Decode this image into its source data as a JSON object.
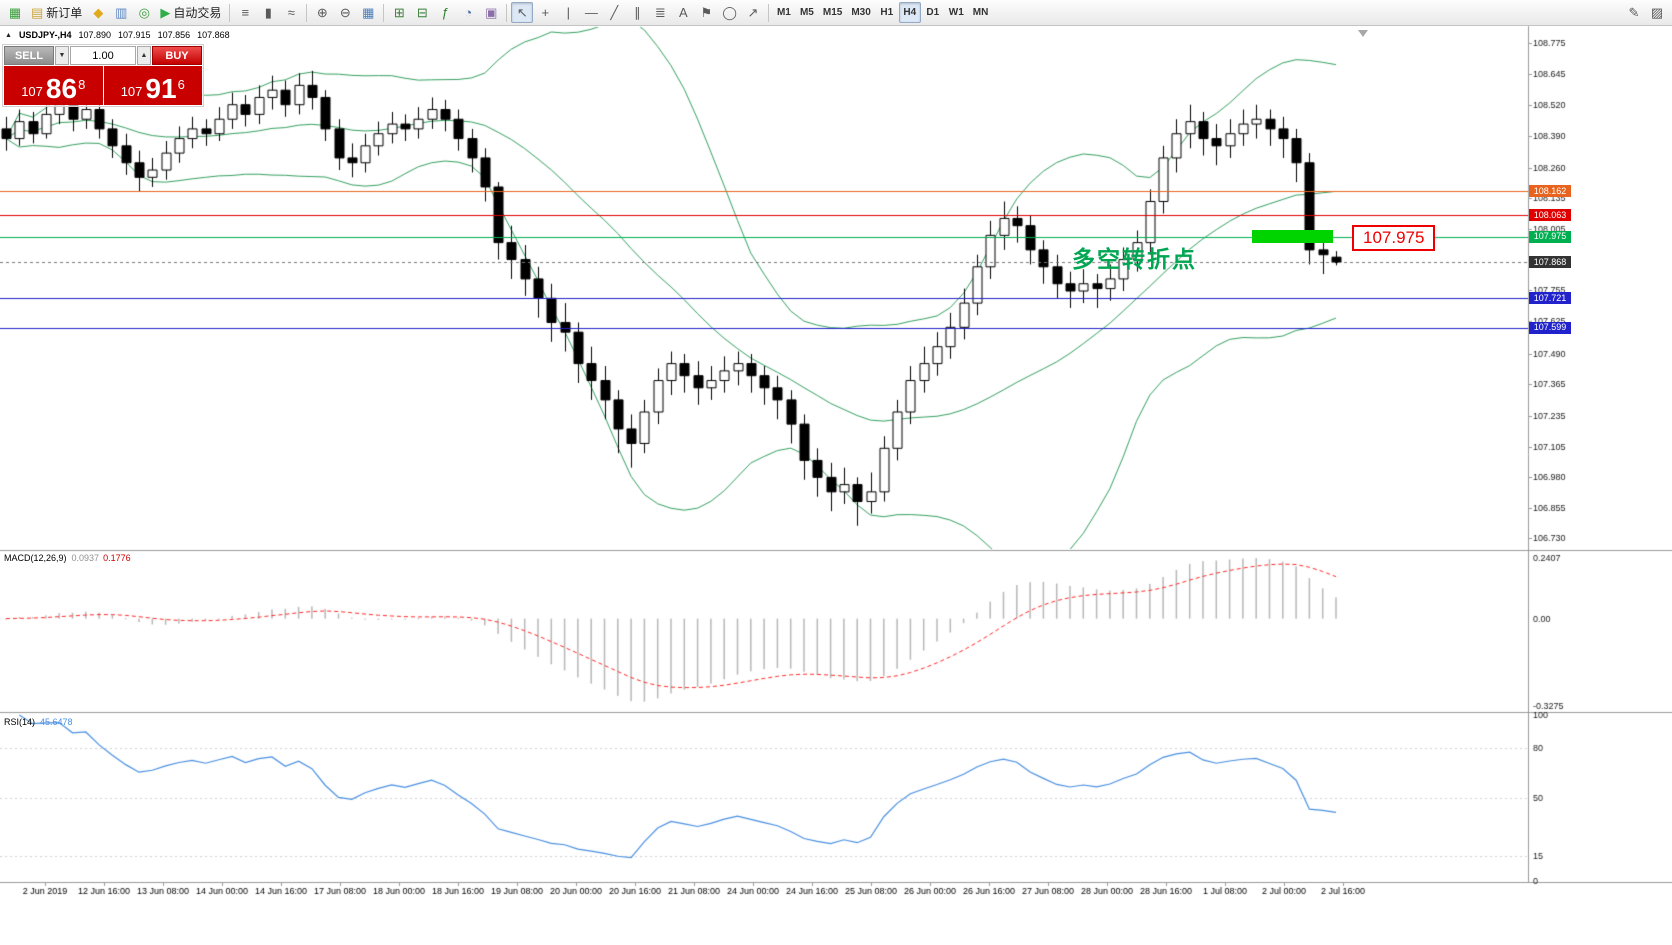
{
  "toolbar": {
    "buttons_left": [
      {
        "name": "new-chart-button",
        "glyph": "▦",
        "color": "#3a9e3a"
      },
      {
        "name": "new-order-button",
        "glyph": "▤",
        "color": "#caa53c",
        "label": "新订单"
      },
      {
        "name": "market-watch-icon",
        "glyph": "◆",
        "color": "#e0a91e"
      },
      {
        "name": "data-window-icon",
        "glyph": "▥",
        "color": "#5b85c0"
      },
      {
        "name": "navigator-icon",
        "glyph": "◎",
        "color": "#3a9e3a"
      },
      {
        "name": "autotrading-button",
        "glyph": "▶",
        "color": "#2fae4a",
        "label": "自动交易"
      }
    ],
    "chart_modes": [
      {
        "name": "bar-chart-mode-button",
        "glyph": "≡"
      },
      {
        "name": "candlestick-mode-button",
        "glyph": "▮"
      },
      {
        "name": "line-chart-mode-button",
        "glyph": "≈"
      }
    ],
    "zoom_group": [
      {
        "name": "zoom-in-button",
        "glyph": "⊕"
      },
      {
        "name": "zoom-out-button",
        "glyph": "⊖"
      },
      {
        "name": "auto-scroll-button",
        "glyph": "▦",
        "color": "#4a7ebb"
      }
    ],
    "window_group": [
      {
        "name": "tile-windows-button",
        "glyph": "⊞",
        "color": "#3a7e3a"
      },
      {
        "name": "cascade-windows-button",
        "glyph": "⊟",
        "color": "#3a7e3a"
      },
      {
        "name": "indicators-button",
        "glyph": "ƒ",
        "color": "#2f7e2f"
      },
      {
        "name": "periods-button",
        "glyph": "◔",
        "color": "#4a6ea8"
      },
      {
        "name": "templates-button",
        "glyph": "▣",
        "color": "#8a6ea8"
      }
    ],
    "tools": [
      {
        "name": "cursor-tool",
        "glyph": "↖",
        "active": true
      },
      {
        "name": "crosshair-tool",
        "glyph": "+"
      },
      {
        "name": "vertical-line-tool",
        "glyph": "|"
      },
      {
        "name": "horizontal-line-tool",
        "glyph": "—"
      },
      {
        "name": "trendline-tool",
        "glyph": "╱"
      },
      {
        "name": "channel-tool",
        "glyph": "∥"
      },
      {
        "name": "fibonacci-tool",
        "glyph": "≣"
      },
      {
        "name": "text-tool",
        "glyph": "A"
      },
      {
        "name": "label-tool",
        "glyph": "⚑"
      },
      {
        "name": "shapes-tool",
        "glyph": "◯"
      },
      {
        "name": "arrows-tool",
        "glyph": "↗"
      }
    ],
    "timeframes": [
      {
        "label": "M1"
      },
      {
        "label": "M5"
      },
      {
        "label": "M15"
      },
      {
        "label": "M30"
      },
      {
        "label": "H1"
      },
      {
        "label": "H4",
        "active": true
      },
      {
        "label": "D1"
      },
      {
        "label": "W1"
      },
      {
        "label": "MN"
      }
    ],
    "right_icons": [
      {
        "name": "edit-icon",
        "glyph": "✎"
      },
      {
        "name": "panel-icon",
        "glyph": "▨"
      }
    ]
  },
  "chart": {
    "symbol_info": {
      "direction_icon": "▲",
      "symbol": "USDJPY-,H4",
      "open": "107.890",
      "high": "107.915",
      "low": "107.856",
      "close": "107.868"
    },
    "trade_panel": {
      "sell_label": "SELL",
      "buy_label": "BUY",
      "volume": "1.00",
      "step_down_icon": "▼",
      "step_up_icon": "▲",
      "sell_price": {
        "small": "107",
        "big": "86",
        "sup": "8"
      },
      "buy_price": {
        "small": "107",
        "big": "91",
        "sup": "6"
      }
    },
    "annotation": {
      "text": "多空转折点",
      "color": "#00a651"
    },
    "callout": {
      "value": "107.975",
      "color": "#ee0000"
    },
    "highlight": {
      "color": "#00d400",
      "price_top": 108.001,
      "price_bottom": 107.948,
      "start_index": 94,
      "end_index": 99.5
    },
    "price_scale": {
      "max": 108.837,
      "min": 106.688,
      "labels": [
        "108.775",
        "108.645",
        "108.520",
        "108.390",
        "108.260",
        "108.135",
        "108.005",
        "107.880",
        "107.755",
        "107.625",
        "107.490",
        "107.365",
        "107.235",
        "107.105",
        "106.980",
        "106.855",
        "106.730"
      ]
    },
    "levels": [
      {
        "price": 108.162,
        "label": "108.162",
        "color": "#e8641e"
      },
      {
        "price": 108.063,
        "label": "108.063",
        "color": "#e00000"
      },
      {
        "price": 107.975,
        "label": "107.975",
        "color": "#00b050"
      },
      {
        "price": 107.721,
        "label": "107.721",
        "color": "#2222cc"
      },
      {
        "price": 107.599,
        "label": "107.599",
        "color": "#2222cc"
      }
    ],
    "current_price": {
      "price": 107.868,
      "label": "107.868",
      "color": "#333333"
    },
    "bollinger_color": "#35a060",
    "candles": [
      [
        108.42,
        108.47,
        108.33,
        108.38
      ],
      [
        108.38,
        108.5,
        108.35,
        108.45
      ],
      [
        108.45,
        108.49,
        108.36,
        108.4
      ],
      [
        108.4,
        108.52,
        108.38,
        108.48
      ],
      [
        108.48,
        108.57,
        108.44,
        108.52
      ],
      [
        108.52,
        108.55,
        108.41,
        108.46
      ],
      [
        108.46,
        108.54,
        108.42,
        108.5
      ],
      [
        108.5,
        108.53,
        108.38,
        108.42
      ],
      [
        108.42,
        108.46,
        108.3,
        108.35
      ],
      [
        108.35,
        108.4,
        108.23,
        108.28
      ],
      [
        108.28,
        108.33,
        108.16,
        108.22
      ],
      [
        108.22,
        108.3,
        108.18,
        108.25
      ],
      [
        108.25,
        108.37,
        108.21,
        108.32
      ],
      [
        108.32,
        108.43,
        108.28,
        108.38
      ],
      [
        108.38,
        108.47,
        108.34,
        108.42
      ],
      [
        108.42,
        108.46,
        108.35,
        108.4
      ],
      [
        108.4,
        108.51,
        108.37,
        108.46
      ],
      [
        108.46,
        108.57,
        108.42,
        108.52
      ],
      [
        108.52,
        108.56,
        108.43,
        108.48
      ],
      [
        108.48,
        108.6,
        108.44,
        108.55
      ],
      [
        108.55,
        108.64,
        108.5,
        108.58
      ],
      [
        108.58,
        108.62,
        108.47,
        108.52
      ],
      [
        108.52,
        108.65,
        108.48,
        108.6
      ],
      [
        108.6,
        108.66,
        108.5,
        108.55
      ],
      [
        108.55,
        108.58,
        108.37,
        108.42
      ],
      [
        108.42,
        108.46,
        108.25,
        108.3
      ],
      [
        108.3,
        108.36,
        108.22,
        108.28
      ],
      [
        108.28,
        108.4,
        108.24,
        108.35
      ],
      [
        108.35,
        108.45,
        108.31,
        108.4
      ],
      [
        108.4,
        108.49,
        108.36,
        108.44
      ],
      [
        108.44,
        108.48,
        108.37,
        108.42
      ],
      [
        108.42,
        108.51,
        108.38,
        108.46
      ],
      [
        108.46,
        108.55,
        108.42,
        108.5
      ],
      [
        108.5,
        108.54,
        108.41,
        108.46
      ],
      [
        108.46,
        108.5,
        108.33,
        108.38
      ],
      [
        108.38,
        108.42,
        108.24,
        108.3
      ],
      [
        108.3,
        108.34,
        108.12,
        108.18
      ],
      [
        108.18,
        108.2,
        107.88,
        107.95
      ],
      [
        107.95,
        108.02,
        107.8,
        107.88
      ],
      [
        107.88,
        107.94,
        107.73,
        107.8
      ],
      [
        107.8,
        107.85,
        107.64,
        107.72
      ],
      [
        107.72,
        107.78,
        107.54,
        107.62
      ],
      [
        107.62,
        107.7,
        107.5,
        107.58
      ],
      [
        107.58,
        107.62,
        107.37,
        107.45
      ],
      [
        107.45,
        107.52,
        107.3,
        107.38
      ],
      [
        107.38,
        107.44,
        107.22,
        107.3
      ],
      [
        107.3,
        107.34,
        107.08,
        107.18
      ],
      [
        107.18,
        107.24,
        107.02,
        107.12
      ],
      [
        107.12,
        107.3,
        107.08,
        107.25
      ],
      [
        107.25,
        107.43,
        107.2,
        107.38
      ],
      [
        107.38,
        107.5,
        107.32,
        107.45
      ],
      [
        107.45,
        107.49,
        107.33,
        107.4
      ],
      [
        107.4,
        107.46,
        107.28,
        107.35
      ],
      [
        107.35,
        107.44,
        107.3,
        107.38
      ],
      [
        107.38,
        107.48,
        107.33,
        107.42
      ],
      [
        107.42,
        107.5,
        107.36,
        107.45
      ],
      [
        107.45,
        107.49,
        107.33,
        107.4
      ],
      [
        107.4,
        107.44,
        107.28,
        107.35
      ],
      [
        107.35,
        107.4,
        107.22,
        107.3
      ],
      [
        107.3,
        107.34,
        107.12,
        107.2
      ],
      [
        107.2,
        107.24,
        106.97,
        107.05
      ],
      [
        107.05,
        107.1,
        106.9,
        106.98
      ],
      [
        106.98,
        107.04,
        106.84,
        106.92
      ],
      [
        106.92,
        107.02,
        106.87,
        106.95
      ],
      [
        106.95,
        106.98,
        106.78,
        106.88
      ],
      [
        106.88,
        107.0,
        106.83,
        106.92
      ],
      [
        106.92,
        107.15,
        106.88,
        107.1
      ],
      [
        107.1,
        107.3,
        107.05,
        107.25
      ],
      [
        107.25,
        107.44,
        107.2,
        107.38
      ],
      [
        107.38,
        107.52,
        107.33,
        107.45
      ],
      [
        107.45,
        107.58,
        107.4,
        107.52
      ],
      [
        107.52,
        107.66,
        107.47,
        107.6
      ],
      [
        107.6,
        107.76,
        107.55,
        107.7
      ],
      [
        107.7,
        107.9,
        107.65,
        107.85
      ],
      [
        107.85,
        108.04,
        107.8,
        107.98
      ],
      [
        107.98,
        108.12,
        107.92,
        108.05
      ],
      [
        108.05,
        108.1,
        107.95,
        108.02
      ],
      [
        108.02,
        108.06,
        107.86,
        107.92
      ],
      [
        107.92,
        107.96,
        107.78,
        107.85
      ],
      [
        107.85,
        107.9,
        107.72,
        107.78
      ],
      [
        107.78,
        107.83,
        107.68,
        107.75
      ],
      [
        107.75,
        107.84,
        107.7,
        107.78
      ],
      [
        107.78,
        107.82,
        107.68,
        107.76
      ],
      [
        107.76,
        107.86,
        107.71,
        107.8
      ],
      [
        107.8,
        107.93,
        107.75,
        107.88
      ],
      [
        107.88,
        108.0,
        107.83,
        107.95
      ],
      [
        107.95,
        108.17,
        107.9,
        108.12
      ],
      [
        108.12,
        108.35,
        108.07,
        108.3
      ],
      [
        108.3,
        108.46,
        108.24,
        108.4
      ],
      [
        108.4,
        108.52,
        108.34,
        108.45
      ],
      [
        108.45,
        108.49,
        108.31,
        108.38
      ],
      [
        108.38,
        108.44,
        108.27,
        108.35
      ],
      [
        108.35,
        108.46,
        108.3,
        108.4
      ],
      [
        108.4,
        108.5,
        108.35,
        108.44
      ],
      [
        108.44,
        108.52,
        108.38,
        108.46
      ],
      [
        108.46,
        108.5,
        108.35,
        108.42
      ],
      [
        108.42,
        108.47,
        108.3,
        108.38
      ],
      [
        108.38,
        108.42,
        108.2,
        108.28
      ],
      [
        108.28,
        108.32,
        107.86,
        107.92
      ],
      [
        107.92,
        107.98,
        107.82,
        107.9
      ],
      [
        107.89,
        107.915,
        107.856,
        107.868
      ]
    ],
    "time_labels": [
      "2 Jun 2019",
      "12 Jun 16:00",
      "13 Jun 08:00",
      "14 Jun 00:00",
      "14 Jun 16:00",
      "17 Jun 08:00",
      "18 Jun 00:00",
      "18 Jun 16:00",
      "19 Jun 08:00",
      "20 Jun 00:00",
      "20 Jun 16:00",
      "21 Jun 08:00",
      "24 Jun 00:00",
      "24 Jun 16:00",
      "25 Jun 08:00",
      "26 Jun 00:00",
      "26 Jun 16:00",
      "27 Jun 08:00",
      "28 Jun 00:00",
      "28 Jun 16:00",
      "1 Jul 08:00",
      "2 Jul 00:00",
      "2 Jul 16:00"
    ]
  },
  "macd": {
    "name": "MACD(12,26,9)",
    "value1": "0.0937",
    "value2": "0.1776",
    "axis_top": "0.2407",
    "axis_zero": "0.00",
    "axis_bottom": "-0.3275",
    "histogram_color": "#b8b8b8",
    "signal_color": "#ff2a2a"
  },
  "rsi": {
    "name": "RSI(14)",
    "value": "45.6478",
    "line_color": "#4a90e2",
    "levels": [
      {
        "v": 100,
        "label": "100"
      },
      {
        "v": 80,
        "label": "80"
      },
      {
        "v": 50,
        "label": "50"
      },
      {
        "v": 15,
        "label": "15"
      },
      {
        "v": 0,
        "label": "0"
      }
    ],
    "dashed_levels": [
      80,
      50,
      15
    ]
  }
}
